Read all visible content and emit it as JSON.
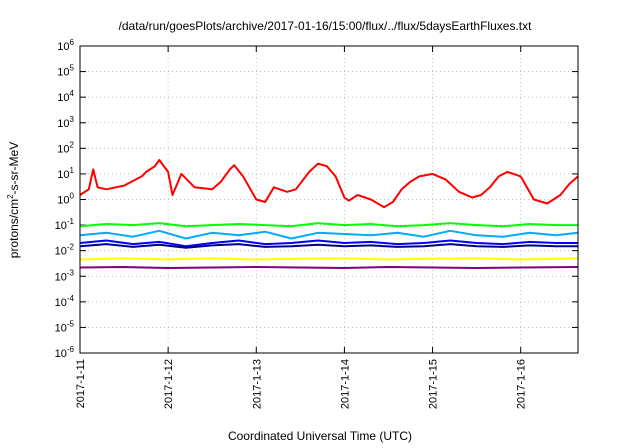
{
  "chart_data": {
    "type": "line",
    "title": "/data/run/goesPlots/archive/2017-01-16/15:00/flux/../flux/5daysEarthFluxes.txt",
    "xlabel": "Coordinated Universal Time (UTC)",
    "ylabel_main": "protons/cm",
    "ylabel_sup": "2",
    "ylabel_rest": "-s-sr-MeV",
    "yscale": "log",
    "xlim": [
      0,
      5.65
    ],
    "ylim_exp": [
      -6,
      6
    ],
    "grid": true,
    "x_ticks": [
      "2017-1-11",
      "2017-1-12",
      "2017-1-13",
      "2017-1-14",
      "2017-1-15",
      "2017-1-16"
    ],
    "y_ticks": [
      {
        "base": "10",
        "exp": "-6"
      },
      {
        "base": "10",
        "exp": "-5"
      },
      {
        "base": "10",
        "exp": "-4"
      },
      {
        "base": "10",
        "exp": "-3"
      },
      {
        "base": "10",
        "exp": "-2"
      },
      {
        "base": "10",
        "exp": "-1"
      },
      {
        "base": "10",
        "exp": "0"
      },
      {
        "base": "10",
        "exp": "1"
      },
      {
        "base": "10",
        "exp": "2"
      },
      {
        "base": "10",
        "exp": "3"
      },
      {
        "base": "10",
        "exp": "4"
      },
      {
        "base": "10",
        "exp": "5"
      },
      {
        "base": "10",
        "exp": "6"
      }
    ],
    "series": [
      {
        "color": "#ff0000",
        "x": [
          0,
          0.1,
          0.15,
          0.2,
          0.3,
          0.5,
          0.7,
          0.75,
          0.85,
          0.9,
          1.0,
          1.05,
          1.15,
          1.3,
          1.5,
          1.6,
          1.7,
          1.75,
          1.85,
          2.0,
          2.1,
          2.2,
          2.35,
          2.45,
          2.6,
          2.7,
          2.8,
          2.9,
          3.0,
          3.05,
          3.15,
          3.3,
          3.45,
          3.55,
          3.65,
          3.75,
          3.85,
          4.0,
          4.15,
          4.3,
          4.45,
          4.55,
          4.65,
          4.75,
          4.85,
          5.0,
          5.15,
          5.3,
          5.45,
          5.55,
          5.65
        ],
        "y": [
          1.5,
          2.5,
          15,
          3,
          2.5,
          3.5,
          8,
          12,
          20,
          35,
          12,
          1.5,
          10,
          3,
          2.5,
          5,
          15,
          22,
          8,
          1,
          0.8,
          3,
          2,
          2.5,
          12,
          25,
          20,
          8,
          1.2,
          0.9,
          1.5,
          1,
          0.5,
          0.8,
          2.5,
          5,
          8,
          10,
          6,
          2,
          1.2,
          1.5,
          3,
          8,
          12,
          8,
          1,
          0.7,
          1.5,
          4,
          8
        ]
      },
      {
        "color": "#00ff00",
        "x": [
          0,
          0.3,
          0.6,
          0.9,
          1.2,
          1.5,
          1.8,
          2.1,
          2.4,
          2.7,
          3.0,
          3.3,
          3.6,
          3.9,
          4.2,
          4.5,
          4.8,
          5.1,
          5.4,
          5.65
        ],
        "y": [
          0.09,
          0.11,
          0.1,
          0.12,
          0.09,
          0.1,
          0.11,
          0.1,
          0.09,
          0.12,
          0.1,
          0.11,
          0.09,
          0.1,
          0.12,
          0.1,
          0.09,
          0.11,
          0.1,
          0.1
        ]
      },
      {
        "color": "#00aaff",
        "x": [
          0,
          0.3,
          0.6,
          0.9,
          1.2,
          1.5,
          1.8,
          2.1,
          2.4,
          2.7,
          3.0,
          3.3,
          3.6,
          3.9,
          4.2,
          4.5,
          4.8,
          5.1,
          5.4,
          5.65
        ],
        "y": [
          0.04,
          0.05,
          0.035,
          0.06,
          0.03,
          0.05,
          0.04,
          0.055,
          0.03,
          0.05,
          0.045,
          0.04,
          0.05,
          0.035,
          0.06,
          0.04,
          0.035,
          0.05,
          0.04,
          0.05
        ]
      },
      {
        "color": "#0000ff",
        "x": [
          0,
          0.3,
          0.6,
          0.9,
          1.2,
          1.5,
          1.8,
          2.1,
          2.4,
          2.7,
          3.0,
          3.3,
          3.6,
          3.9,
          4.2,
          4.5,
          4.8,
          5.1,
          5.4,
          5.65
        ],
        "y": [
          0.02,
          0.025,
          0.018,
          0.022,
          0.015,
          0.02,
          0.025,
          0.018,
          0.02,
          0.025,
          0.02,
          0.022,
          0.018,
          0.02,
          0.025,
          0.02,
          0.018,
          0.022,
          0.02,
          0.02
        ]
      },
      {
        "color": "#00008b",
        "x": [
          0,
          0.3,
          0.6,
          0.9,
          1.2,
          1.5,
          1.8,
          2.1,
          2.4,
          2.7,
          3.0,
          3.3,
          3.6,
          3.9,
          4.2,
          4.5,
          4.8,
          5.1,
          5.4,
          5.65
        ],
        "y": [
          0.015,
          0.018,
          0.014,
          0.017,
          0.013,
          0.016,
          0.018,
          0.014,
          0.015,
          0.017,
          0.015,
          0.016,
          0.014,
          0.015,
          0.018,
          0.015,
          0.014,
          0.016,
          0.015,
          0.015
        ]
      },
      {
        "color": "#ffff00",
        "x": [
          0,
          0.5,
          1.0,
          1.5,
          2.0,
          2.5,
          3.0,
          3.5,
          4.0,
          4.5,
          5.0,
          5.65
        ],
        "y": [
          0.0045,
          0.005,
          0.0045,
          0.005,
          0.0045,
          0.0048,
          0.005,
          0.0045,
          0.0048,
          0.005,
          0.0045,
          0.005
        ]
      },
      {
        "color": "#800080",
        "x": [
          0,
          0.5,
          1.0,
          1.5,
          2.0,
          2.5,
          3.0,
          3.5,
          4.0,
          4.5,
          5.0,
          5.65
        ],
        "y": [
          0.0022,
          0.0023,
          0.0021,
          0.0022,
          0.0023,
          0.0022,
          0.0021,
          0.0023,
          0.0022,
          0.0021,
          0.0022,
          0.0023
        ]
      }
    ]
  }
}
